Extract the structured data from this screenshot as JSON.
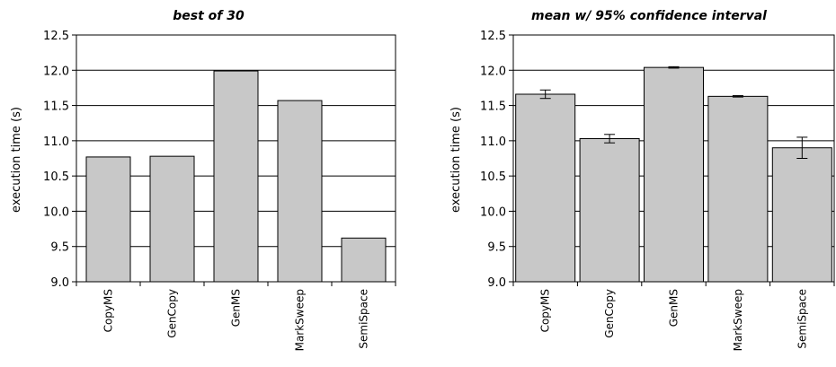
{
  "chart_data": [
    {
      "type": "bar",
      "title": "best of 30",
      "ylabel": "execution time (s)",
      "xlabel": "",
      "ylim": [
        9.0,
        12.5
      ],
      "yticks": [
        "9.0",
        "9.5",
        "10.0",
        "10.5",
        "11.0",
        "11.5",
        "12.0",
        "12.5"
      ],
      "grid": true,
      "categories": [
        "CopyMS",
        "GenCopy",
        "GenMS",
        "MarkSweep",
        "SemiSpace"
      ],
      "values": [
        10.77,
        10.78,
        11.99,
        11.57,
        9.62
      ],
      "bar_color": "#c8c8c8"
    },
    {
      "type": "bar",
      "title": "mean w/ 95% confidence interval",
      "ylabel": "execution time (s)",
      "xlabel": "",
      "ylim": [
        9.0,
        12.5
      ],
      "yticks": [
        "9.0",
        "9.5",
        "10.0",
        "10.5",
        "11.0",
        "11.5",
        "12.0",
        "12.5"
      ],
      "grid": true,
      "categories": [
        "CopyMS",
        "GenCopy",
        "GenMS",
        "MarkSweep",
        "SemiSpace"
      ],
      "values": [
        11.66,
        11.03,
        12.04,
        11.63,
        10.9
      ],
      "error": [
        0.06,
        0.06,
        0.01,
        0.01,
        0.15
      ],
      "bar_color": "#c8c8c8"
    }
  ]
}
